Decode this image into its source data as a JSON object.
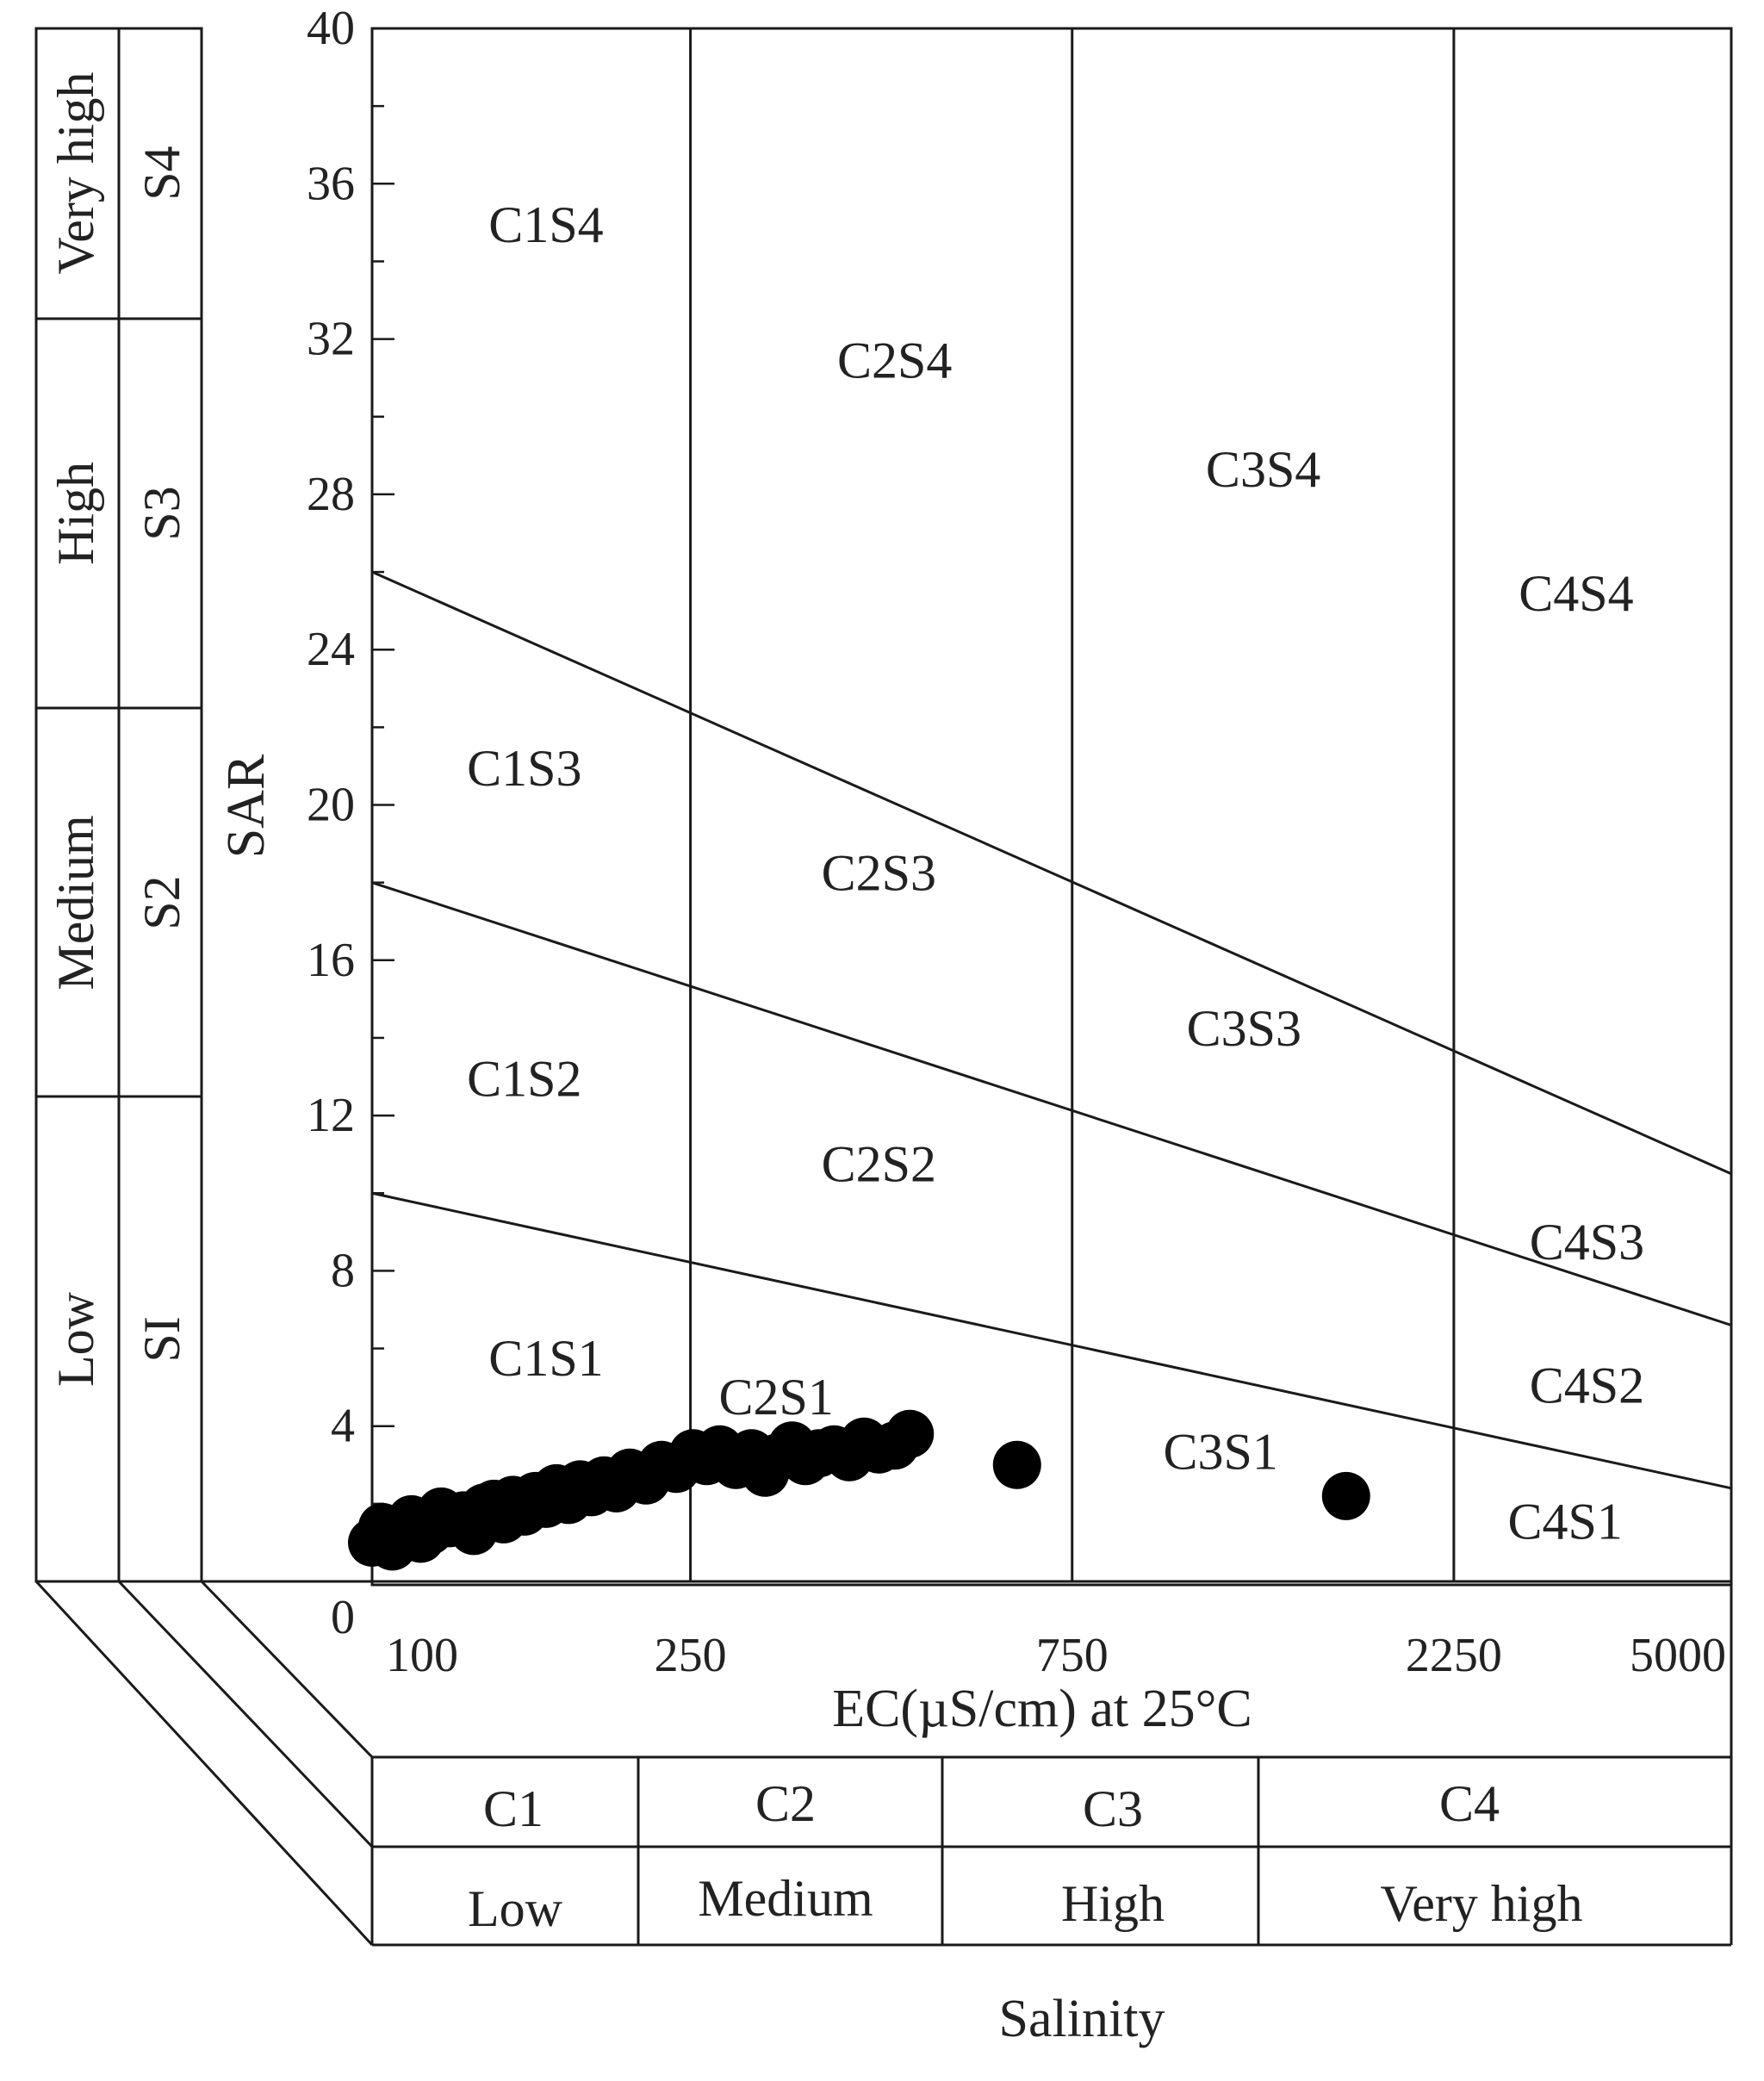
{
  "chart_data": {
    "type": "scatter",
    "title": "",
    "xlabel": "EC(µS/cm) at 25°C",
    "ylabel": "SAR",
    "x_scale": "log",
    "xlim": [
      100,
      5000
    ],
    "ylim": [
      0,
      40
    ],
    "x_ticks": [
      "100",
      "250",
      "750",
      "2250",
      "5000"
    ],
    "x_tick_values": [
      100,
      250,
      750,
      2250,
      5000
    ],
    "y_ticks": [
      0,
      4,
      8,
      12,
      16,
      20,
      24,
      28,
      32,
      36,
      40
    ],
    "y_minor_step": 2,
    "grid": false,
    "legend": "none",
    "boundaries": [
      {
        "from": [
          100,
          26.0
        ],
        "to": [
          5000,
          10.5
        ]
      },
      {
        "from": [
          100,
          18.0
        ],
        "to": [
          5000,
          6.6
        ]
      },
      {
        "from": [
          100,
          10.0
        ],
        "to": [
          5000,
          2.4
        ]
      }
    ],
    "vertical_boundaries": [
      250,
      750,
      2250
    ],
    "zone_labels": [
      {
        "text": "C1S4",
        "x": 165,
        "y": 34.5
      },
      {
        "text": "C2S4",
        "x": 450,
        "y": 31.0
      },
      {
        "text": "C3S4",
        "x": 1300,
        "y": 28.2
      },
      {
        "text": "C4S4",
        "x": 3200,
        "y": 25.0
      },
      {
        "text": "C1S3",
        "x": 155,
        "y": 20.5
      },
      {
        "text": "C2S3",
        "x": 430,
        "y": 17.8
      },
      {
        "text": "C3S3",
        "x": 1230,
        "y": 13.8
      },
      {
        "text": "C4S3",
        "x": 3300,
        "y": 8.3
      },
      {
        "text": "C1S2",
        "x": 155,
        "y": 12.5
      },
      {
        "text": "C2S2",
        "x": 430,
        "y": 10.3
      },
      {
        "text": "C4S2",
        "x": 3300,
        "y": 4.6
      },
      {
        "text": "C1S1",
        "x": 165,
        "y": 5.3
      },
      {
        "text": "C2S1",
        "x": 320,
        "y": 4.3
      },
      {
        "text": "C3S1",
        "x": 1150,
        "y": 2.9
      },
      {
        "text": "C4S1",
        "x": 3100,
        "y": 1.1
      }
    ],
    "points": [
      [
        100,
        1.0
      ],
      [
        103,
        1.4
      ],
      [
        106,
        0.9
      ],
      [
        110,
        1.2
      ],
      [
        112,
        1.6
      ],
      [
        115,
        1.1
      ],
      [
        118,
        1.3
      ],
      [
        122,
        1.8
      ],
      [
        125,
        1.5
      ],
      [
        130,
        1.7
      ],
      [
        134,
        1.3
      ],
      [
        138,
        1.9
      ],
      [
        142,
        2.0
      ],
      [
        146,
        1.6
      ],
      [
        150,
        2.1
      ],
      [
        155,
        1.8
      ],
      [
        160,
        2.2
      ],
      [
        165,
        2.0
      ],
      [
        170,
        2.4
      ],
      [
        176,
        2.1
      ],
      [
        182,
        2.5
      ],
      [
        188,
        2.3
      ],
      [
        195,
        2.6
      ],
      [
        202,
        2.4
      ],
      [
        210,
        2.8
      ],
      [
        220,
        2.6
      ],
      [
        230,
        3.0
      ],
      [
        240,
        2.9
      ],
      [
        252,
        3.3
      ],
      [
        262,
        3.1
      ],
      [
        272,
        3.4
      ],
      [
        285,
        3.0
      ],
      [
        298,
        3.3
      ],
      [
        310,
        2.8
      ],
      [
        322,
        3.2
      ],
      [
        335,
        3.5
      ],
      [
        348,
        3.1
      ],
      [
        362,
        3.3
      ],
      [
        378,
        3.4
      ],
      [
        395,
        3.2
      ],
      [
        412,
        3.6
      ],
      [
        430,
        3.4
      ],
      [
        450,
        3.5
      ],
      [
        470,
        3.8
      ],
      [
        640,
        3.0
      ],
      [
        1650,
        2.2
      ]
    ]
  },
  "headers": {
    "sodium": [
      {
        "hazard": "Very high",
        "class": "S4"
      },
      {
        "hazard": "High",
        "class": "S3"
      },
      {
        "hazard": "Medium",
        "class": "S2"
      },
      {
        "hazard": "Low",
        "class": "SI"
      }
    ],
    "salinity_classes": [
      "C1",
      "C2",
      "C3",
      "C4"
    ],
    "salinity_hazards": [
      "Low",
      "Medium",
      "High",
      "Very high"
    ],
    "salinity_title": "Salinity"
  }
}
